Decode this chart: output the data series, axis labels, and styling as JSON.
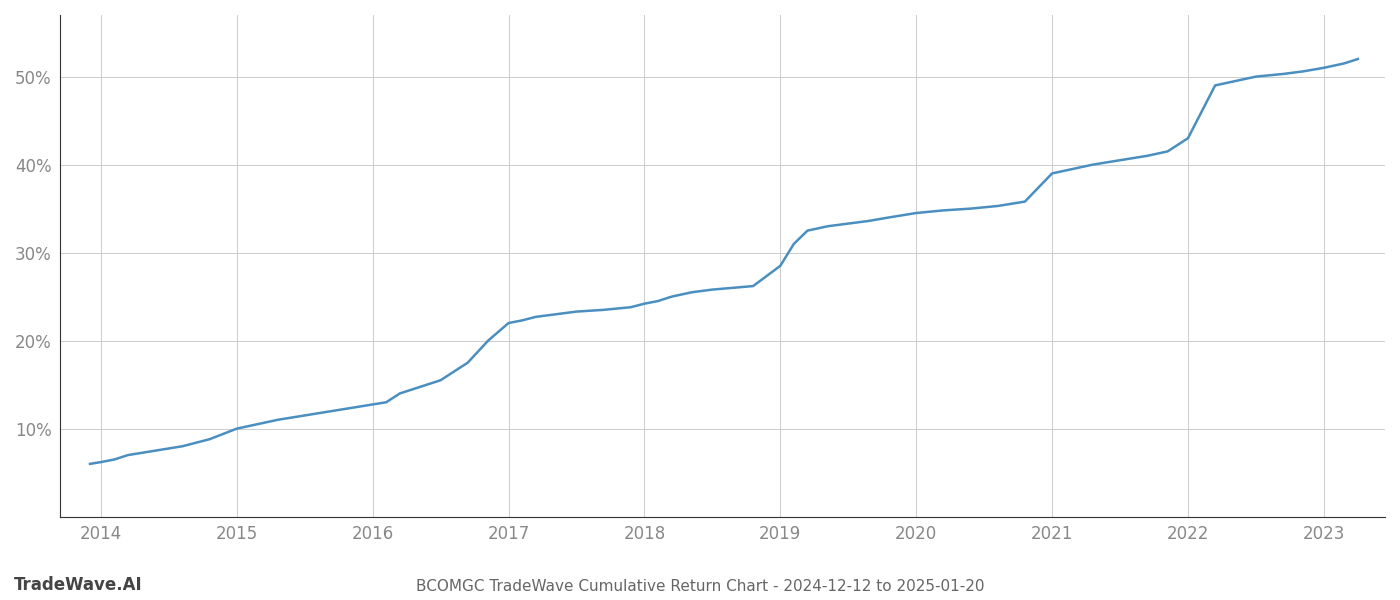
{
  "title": "BCOMGC TradeWave Cumulative Return Chart - 2024-12-12 to 2025-01-20",
  "watermark": "TradeWave.AI",
  "line_color": "#4a8fc0",
  "background_color": "#ffffff",
  "grid_color": "#cccccc",
  "x_years": [
    2014,
    2015,
    2016,
    2017,
    2018,
    2019,
    2020,
    2021,
    2022,
    2023
  ],
  "x_values": [
    2013.92,
    2014.0,
    2014.1,
    2014.2,
    2014.4,
    2014.6,
    2014.8,
    2015.0,
    2015.15,
    2015.3,
    2015.5,
    2015.7,
    2015.9,
    2016.1,
    2016.2,
    2016.3,
    2016.5,
    2016.7,
    2016.85,
    2017.0,
    2017.1,
    2017.2,
    2017.35,
    2017.5,
    2017.7,
    2017.9,
    2018.0,
    2018.1,
    2018.2,
    2018.35,
    2018.5,
    2018.65,
    2018.8,
    2019.0,
    2019.1,
    2019.2,
    2019.35,
    2019.5,
    2019.65,
    2019.8,
    2020.0,
    2020.2,
    2020.4,
    2020.6,
    2020.8,
    2021.0,
    2021.15,
    2021.3,
    2021.5,
    2021.7,
    2021.85,
    2022.0,
    2022.1,
    2022.2,
    2022.35,
    2022.5,
    2022.7,
    2022.85,
    2023.0,
    2023.15,
    2023.25
  ],
  "y_values": [
    6.0,
    6.2,
    6.5,
    7.0,
    7.5,
    8.0,
    8.8,
    10.0,
    10.5,
    11.0,
    11.5,
    12.0,
    12.5,
    13.0,
    14.0,
    14.5,
    15.5,
    17.5,
    20.0,
    22.0,
    22.3,
    22.7,
    23.0,
    23.3,
    23.5,
    23.8,
    24.2,
    24.5,
    25.0,
    25.5,
    25.8,
    26.0,
    26.2,
    28.5,
    31.0,
    32.5,
    33.0,
    33.3,
    33.6,
    34.0,
    34.5,
    34.8,
    35.0,
    35.3,
    35.8,
    39.0,
    39.5,
    40.0,
    40.5,
    41.0,
    41.5,
    43.0,
    46.0,
    49.0,
    49.5,
    50.0,
    50.3,
    50.6,
    51.0,
    51.5,
    52.0
  ],
  "ylim": [
    0,
    57
  ],
  "xlim": [
    2013.7,
    2023.45
  ],
  "yticks": [
    10,
    20,
    30,
    40,
    50
  ],
  "ytick_labels": [
    "10%",
    "20%",
    "30%",
    "40%",
    "50%"
  ],
  "title_fontsize": 11,
  "watermark_fontsize": 12,
  "tick_fontsize": 12,
  "axis_color": "#aaaaaa",
  "tick_label_color": "#888888",
  "title_color": "#666666",
  "watermark_color": "#444444",
  "spine_color": "#333333"
}
